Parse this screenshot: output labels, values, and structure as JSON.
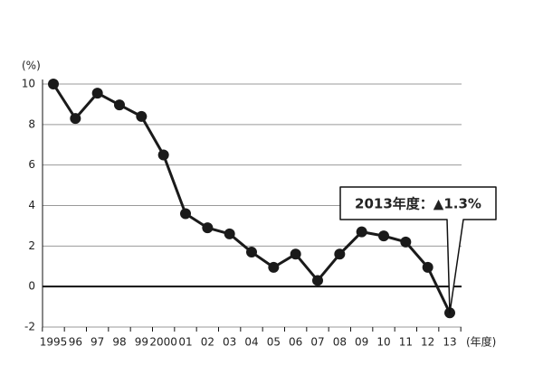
{
  "chart_data": {
    "type": "line",
    "y_label": "(%)",
    "x_label": "(年度)",
    "categories": [
      "1995",
      "96",
      "97",
      "98",
      "99",
      "2000",
      "01",
      "02",
      "03",
      "04",
      "05",
      "06",
      "07",
      "08",
      "09",
      "10",
      "11",
      "12",
      "13"
    ],
    "series": [
      {
        "color": "#1a1a1a",
        "values": [
          10.0,
          8.3,
          9.55,
          8.97,
          8.4,
          6.5,
          3.6,
          2.9,
          2.6,
          1.7,
          0.95,
          1.6,
          0.3,
          1.6,
          2.7,
          2.5,
          2.2,
          0.95,
          -1.3
        ]
      }
    ],
    "ylim": [
      -2,
      10
    ],
    "yticks": [
      -2,
      0,
      2,
      4,
      6,
      8,
      10
    ],
    "grid": true,
    "annotation": "2013年度：▲1.3%"
  }
}
